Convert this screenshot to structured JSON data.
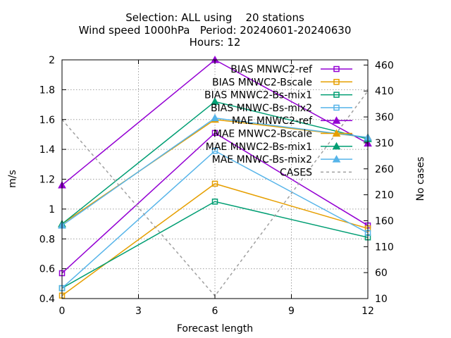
{
  "chart_data": {
    "type": "line",
    "title_lines": [
      "Selection: ALL using    20 stations",
      "Wind speed 1000hPa   Period: 20240601-20240630",
      "Hours: 12"
    ],
    "xlabel": "Forecast length",
    "ylabel": "m/s",
    "y2label": "No cases",
    "xlim": [
      0,
      12
    ],
    "ylim": [
      0.4,
      2.0
    ],
    "y2lim": [
      10,
      470
    ],
    "x_ticks": [
      0,
      3,
      6,
      9,
      12
    ],
    "y_ticks": [
      "0.4",
      "0.6",
      "0.8",
      "1",
      "1.2",
      "1.4",
      "1.6",
      "1.8",
      "2"
    ],
    "y2_ticks": [
      10,
      60,
      110,
      160,
      210,
      260,
      310,
      360,
      410,
      460
    ],
    "grid": true,
    "legend_position": "top-right",
    "series": [
      {
        "name": "BIAS MNWC2-ref",
        "color": "#9400d3",
        "marker": "square",
        "axis": "y",
        "x": [
          0,
          6,
          12
        ],
        "values": [
          0.57,
          1.51,
          0.89
        ]
      },
      {
        "name": "BIAS MNWC2-Bscale",
        "color": "#e69f00",
        "marker": "square",
        "axis": "y",
        "x": [
          0,
          6,
          12
        ],
        "values": [
          0.42,
          1.17,
          0.87
        ]
      },
      {
        "name": "BIAS MNWC2-Bs-mix1",
        "color": "#009e73",
        "marker": "square",
        "axis": "y",
        "x": [
          0,
          6,
          12
        ],
        "values": [
          0.47,
          1.05,
          0.81
        ]
      },
      {
        "name": "BIAS MNWC-Bs-mix2",
        "color": "#56b4e9",
        "marker": "square",
        "axis": "y",
        "x": [
          0,
          6,
          12
        ],
        "values": [
          0.47,
          1.39,
          0.84
        ]
      },
      {
        "name": "MAE MNWC2-ref",
        "color": "#9400d3",
        "marker": "triangle",
        "axis": "y",
        "x": [
          0,
          6,
          12
        ],
        "values": [
          1.16,
          2.0,
          1.44
        ]
      },
      {
        "name": "MAE MNWC2-Bscale",
        "color": "#e69f00",
        "marker": "triangle",
        "axis": "y",
        "x": [
          0,
          6,
          12
        ],
        "values": [
          0.9,
          1.6,
          1.48
        ]
      },
      {
        "name": "MAE MNWC2-Bs-mix1",
        "color": "#009e73",
        "marker": "triangle",
        "axis": "y",
        "x": [
          0,
          6,
          12
        ],
        "values": [
          0.9,
          1.72,
          1.47
        ]
      },
      {
        "name": "MAE MNWC-Bs-mix2",
        "color": "#56b4e9",
        "marker": "triangle",
        "axis": "y",
        "x": [
          0,
          6,
          12
        ],
        "values": [
          0.89,
          1.61,
          1.48
        ]
      },
      {
        "name": "CASES",
        "color": "#a0a0a0",
        "marker": "none",
        "dashed": true,
        "axis": "y2",
        "x": [
          0,
          6,
          12
        ],
        "values": [
          355,
          15,
          410
        ]
      }
    ]
  }
}
